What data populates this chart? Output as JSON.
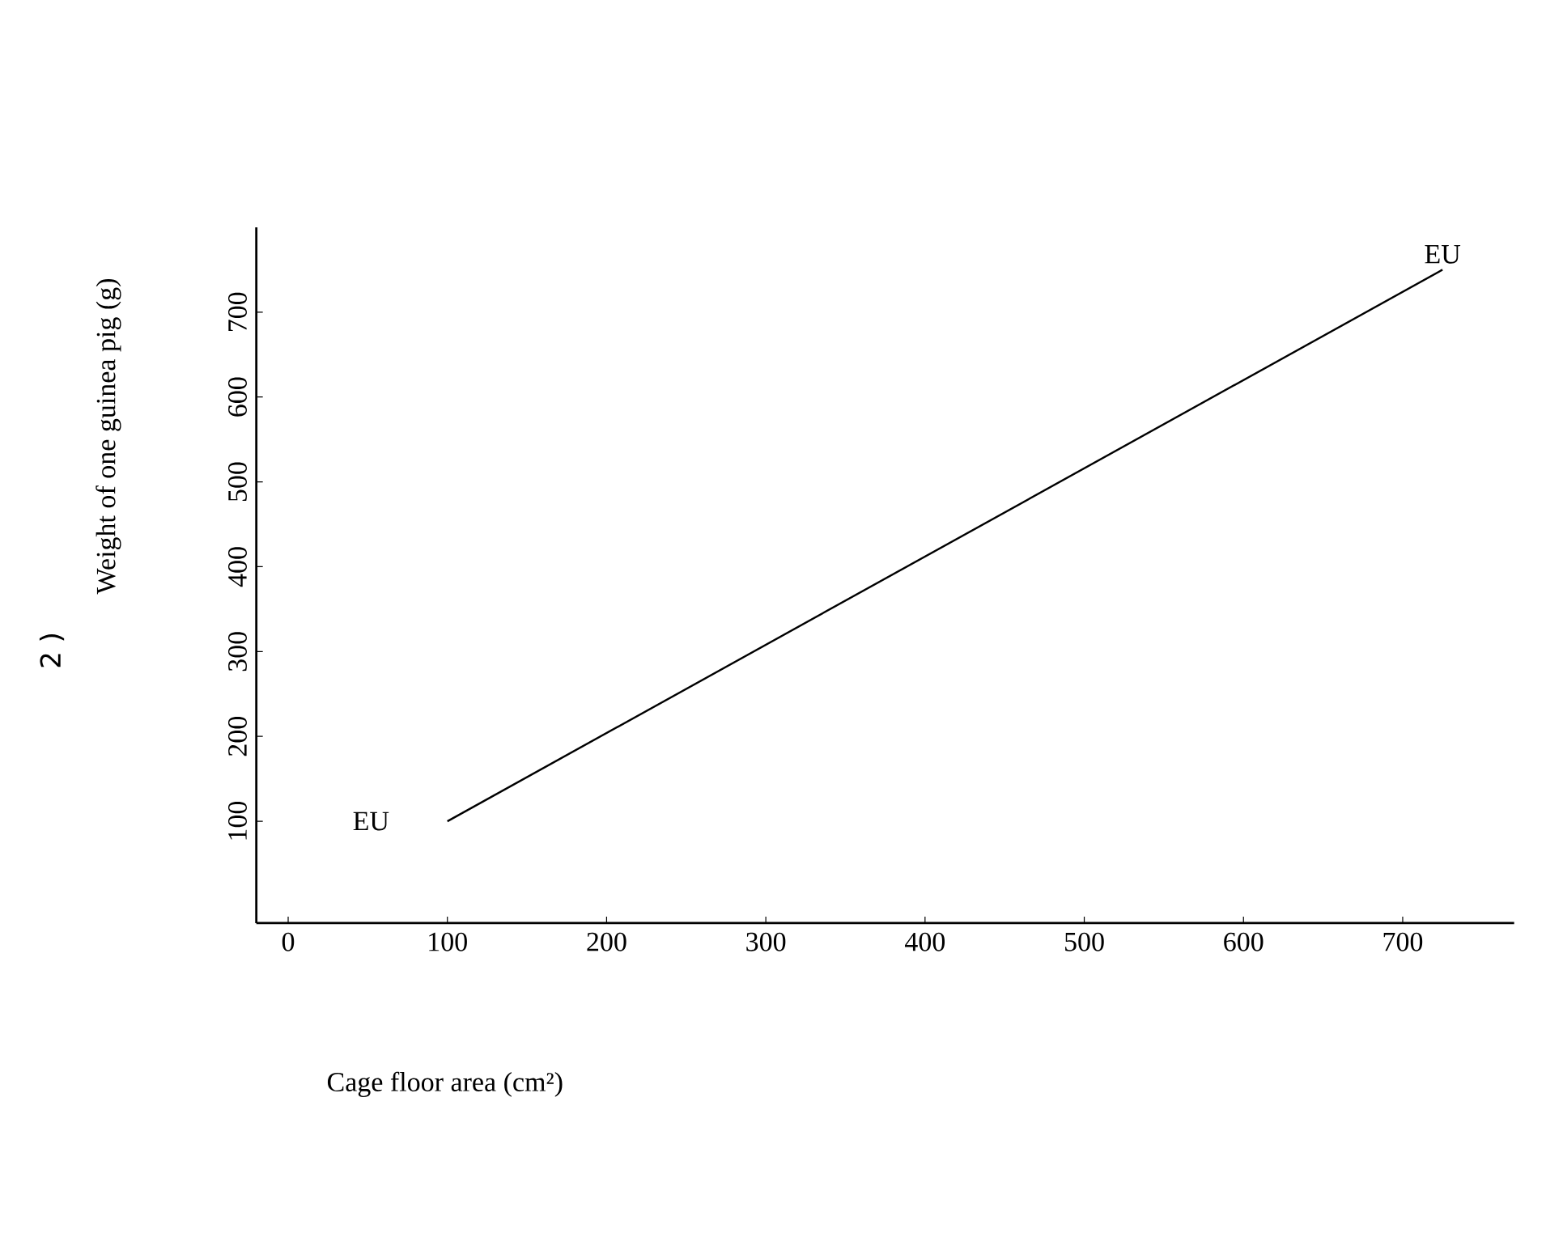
{
  "chart_data": {
    "type": "line",
    "xlabel": "Cage floor area (cm²)",
    "ylabel": "Weight of one guinea pig (g)",
    "xlim": [
      -20,
      770
    ],
    "xticks": [
      0,
      100,
      200,
      300,
      400,
      500,
      600,
      700
    ],
    "ylim": [
      -20,
      800
    ],
    "yticks": [
      100,
      200,
      300,
      400,
      500,
      600,
      700
    ],
    "series": [
      {
        "color": "#000000",
        "x": [
          100,
          725
        ],
        "values": [
          100,
          750
        ]
      }
    ],
    "annotations": [
      {
        "text": "EU",
        "x": 100,
        "y": 100
      },
      {
        "text": "EU",
        "x": 725,
        "y": 750
      },
      "2 )"
    ],
    "grid": false,
    "marker": "none",
    "line_style": "solid"
  }
}
